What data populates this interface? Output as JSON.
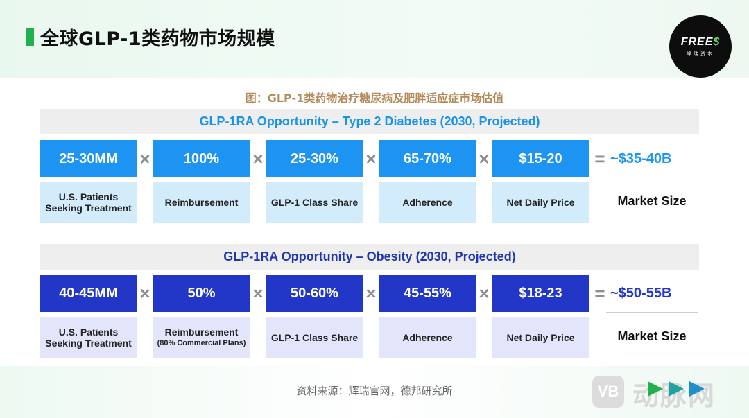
{
  "header": {
    "title": "全球GLP-1类药物市场规模",
    "logo_text": "FREE",
    "logo_dollar": "$",
    "logo_sub": "峰瑞资本",
    "accent_color": "#22b14c"
  },
  "caption": "图：GLP-1类药物治疗糖尿病及肥胖适应症市场估值",
  "diabetes": {
    "header": "GLP-1RA Opportunity – Type 2 Diabetes (2030, Projected)",
    "color": "#1d94f2",
    "values": [
      "25-30MM",
      "100%",
      "25-30%",
      "65-70%",
      "$15-20"
    ],
    "labels": [
      "U.S. Patients Seeking Treatment",
      "Reimbursement",
      "GLP-1 Class Share",
      "Adherence",
      "Net Daily Price"
    ],
    "result": "~$35-40B",
    "result_label": "Market Size"
  },
  "obesity": {
    "header": "GLP-1RA Opportunity – Obesity (2030, Projected)",
    "color": "#2236c7",
    "values": [
      "40-45MM",
      "50%",
      "50-60%",
      "45-55%",
      "$18-23"
    ],
    "labels": [
      "U.S. Patients Seeking Treatment",
      "Reimbursement",
      "GLP-1 Class Share",
      "Adherence",
      "Net Daily Price"
    ],
    "label_note": "(80% Commercial Plans)",
    "result": "~$50-55B",
    "result_label": "Market Size"
  },
  "operators": {
    "multiply": "×",
    "equals": "="
  },
  "footer": {
    "source": "资料来源：辉瑞官网，德邦研究所",
    "watermark": "动脉网",
    "watermark_logo": "VB"
  }
}
